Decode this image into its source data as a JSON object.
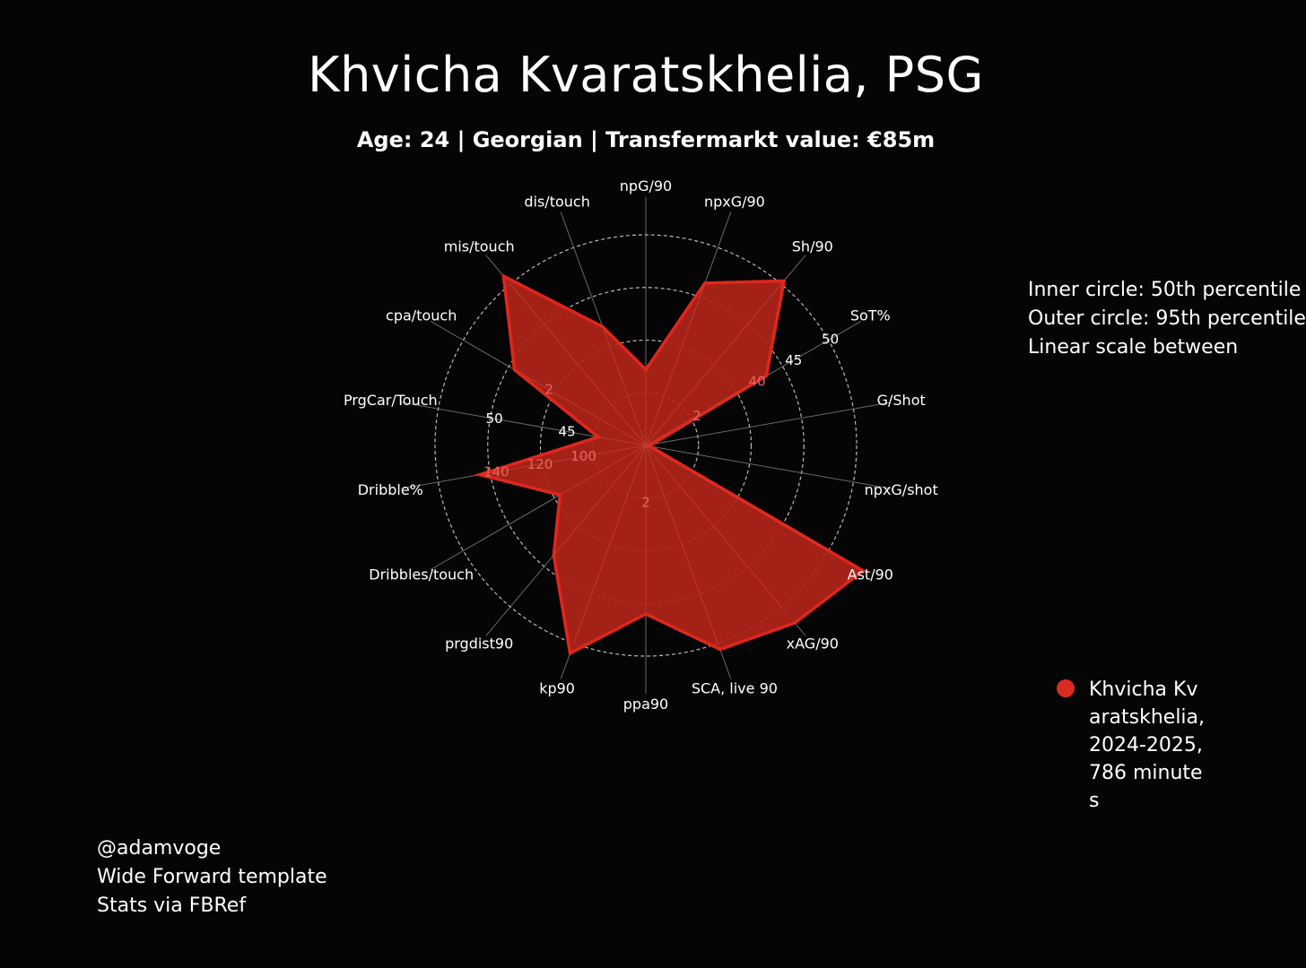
{
  "header": {
    "title": "Khvicha Kvaratskhelia, PSG",
    "subtitle": "Age: 24 | Georgian | Transfermarkt value: €85m"
  },
  "notes": [
    "Inner circle: 50th percentile",
    "Outer circle: 95th percentile",
    "Linear scale between"
  ],
  "credits": [
    "@adamvoge",
    "Wide Forward template",
    "Stats via FBRef"
  ],
  "colors": {
    "background": "#050505",
    "fill": "#b0231a",
    "outline": "#e0261c",
    "grid": "#8a8a8a"
  },
  "chart_data": {
    "type": "radar",
    "radial_scale": "percentile",
    "inner_ring_percentile": 50,
    "outer_ring_percentile": 95,
    "rings": 4,
    "categories": [
      "npG/90",
      "npxG/90",
      "Sh/90",
      "SoT%",
      "G/Shot",
      "npxG/shot",
      "Ast/90",
      "xAG/90",
      "SCA, live 90",
      "ppa90",
      "kp90",
      "prgdist90",
      "Dribbles/touch",
      "Dribble%",
      "PrgCar/Touch",
      "cpa/touch",
      "mis/touch",
      "dis/touch"
    ],
    "series": [
      {
        "name": "Khvicha Kvaratskhelia, 2024-2025, 786 minutes",
        "values": [
          0.36,
          0.82,
          1.02,
          0.66,
          0.03,
          0.02,
          1.19,
          1.1,
          1.03,
          0.8,
          1.05,
          0.68,
          0.47,
          0.8,
          0.23,
          0.72,
          1.05,
          0.6
        ]
      }
    ],
    "tick_labels": [
      {
        "axis": 3,
        "labels": [
          {
            "r": 0.28,
            "text": "2"
          },
          {
            "r": 0.61,
            "text": "40"
          },
          {
            "r": 0.81,
            "text": "45"
          },
          {
            "r": 1.01,
            "text": "50"
          }
        ]
      },
      {
        "axis": 9,
        "labels": [
          {
            "r": 0.27,
            "text": "2"
          }
        ]
      },
      {
        "axis": 13,
        "labels": [
          {
            "r": 0.3,
            "text": "100"
          },
          {
            "r": 0.51,
            "text": "120"
          },
          {
            "r": 0.72,
            "text": "140"
          }
        ]
      },
      {
        "axis": 14,
        "labels": [
          {
            "r": 0.38,
            "text": "45"
          },
          {
            "r": 0.73,
            "text": "50"
          }
        ]
      },
      {
        "axis": 15,
        "labels": [
          {
            "r": 0.53,
            "text": "2"
          }
        ]
      }
    ]
  }
}
